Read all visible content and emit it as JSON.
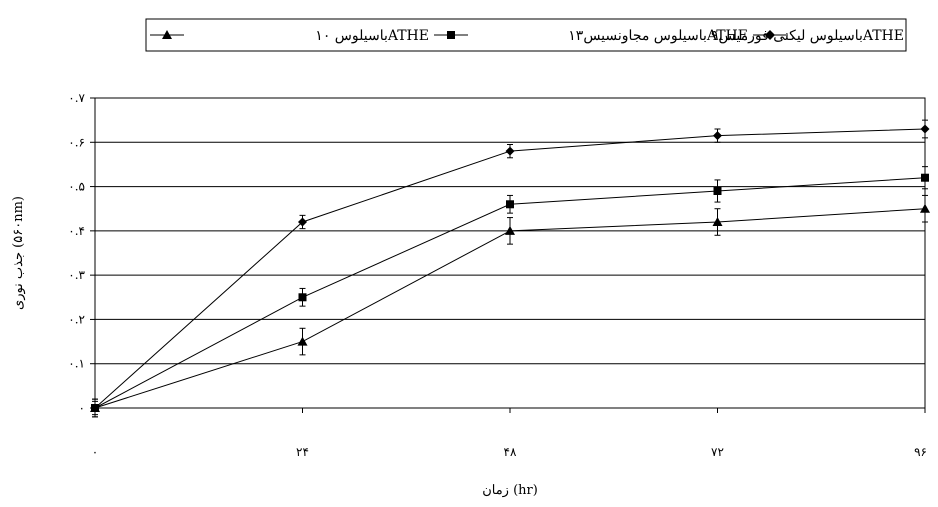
{
  "chart_data": {
    "type": "line",
    "title": "",
    "xlabel": "زمان (hr)",
    "ylabel": "جذب نوری (۵۶۰nm)",
    "x": [
      0,
      24,
      48,
      72,
      96
    ],
    "x_tick_labels": [
      "۰",
      "۲۴",
      "۴۸",
      "۷۲",
      "۹۶"
    ],
    "ylim": [
      0,
      0.7
    ],
    "y_ticks": [
      0,
      0.1,
      0.2,
      0.3,
      0.4,
      0.5,
      0.6,
      0.7
    ],
    "y_tick_labels": [
      "۰",
      "۰.۱",
      "۰.۲",
      "۰.۳",
      "۰.۴",
      "۰.۵",
      "۰.۶",
      "۰.۷"
    ],
    "grid": "horizontal",
    "legend_position": "top",
    "series": [
      {
        "name": "باسیلوس لیکنی فورمیس۹ATHE",
        "marker": "diamond",
        "values": [
          0,
          0.42,
          0.58,
          0.615,
          0.63
        ],
        "errors": [
          0.02,
          0.015,
          0.015,
          0.015,
          0.02
        ]
      },
      {
        "name": "باسیلوس مجاونسیس۱۳ATHE",
        "marker": "square",
        "values": [
          0,
          0.25,
          0.46,
          0.49,
          0.52
        ],
        "errors": [
          0.02,
          0.02,
          0.02,
          0.025,
          0.025
        ]
      },
      {
        "name": "باسیلوس ۱۰ATHE",
        "marker": "triangle",
        "values": [
          0,
          0.15,
          0.4,
          0.42,
          0.45
        ],
        "errors": [
          0.015,
          0.03,
          0.03,
          0.03,
          0.03
        ]
      }
    ]
  }
}
